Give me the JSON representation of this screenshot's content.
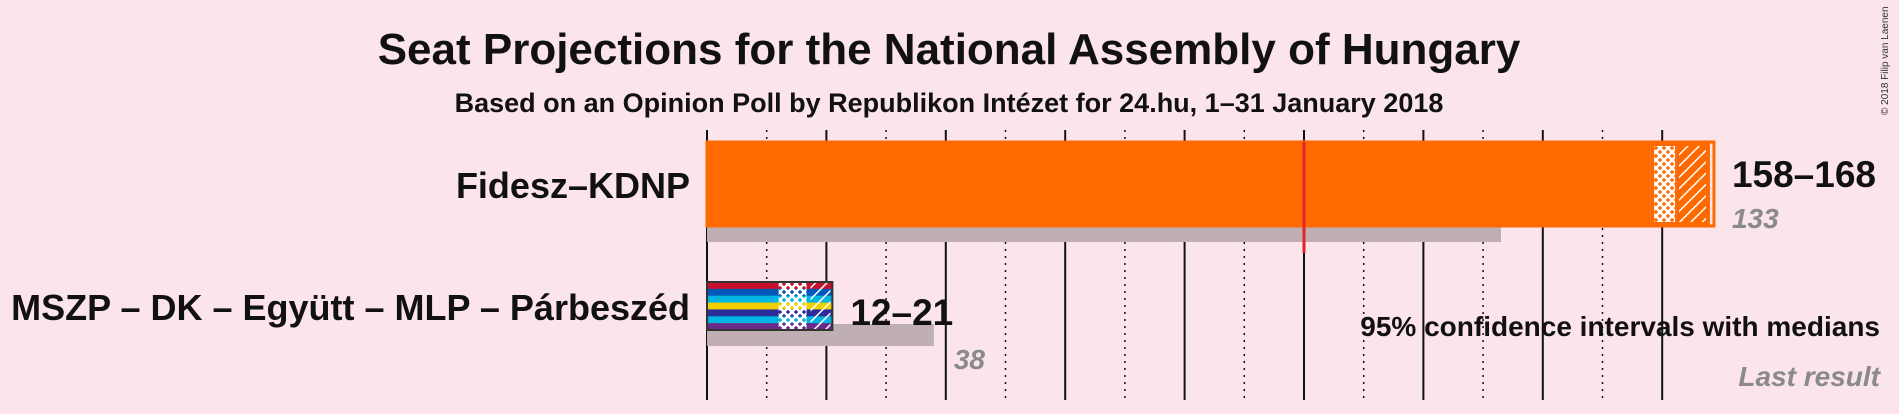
{
  "chart_data": {
    "type": "bar",
    "title": "Seat Projections for the National Assembly of Hungary",
    "subtitle": "Based on an Opinion Poll by Republikon Intézet for 24.hu, 1–31 January 2018",
    "copyright": "© 2018 Filip van Laenen",
    "axis": {
      "min": 0,
      "max": 168,
      "major_tick_step": 20,
      "minor_tick_step": 10
    },
    "majority_line": 100,
    "legend": {
      "ci_label": "95% confidence intervals with medians",
      "last_result_label": "Last result"
    },
    "series": [
      {
        "name": "Fidesz–KDNP",
        "ci_low": 158,
        "ci_high": 168,
        "last_result": 133,
        "range_label": "158–168",
        "last_label": "133",
        "colors": [
          "#ff6a00"
        ]
      },
      {
        "name": "MSZP – DK – Együtt – MLP – Párbeszéd",
        "ci_low": 12,
        "ci_high": 21,
        "last_result": 38,
        "range_label": "12–21",
        "last_label": "38",
        "colors": [
          "#c8102e",
          "#0057b8",
          "#00b5e2",
          "#f2d000",
          "#2b2b9a",
          "#00b5e2",
          "#6a2a8a"
        ]
      }
    ],
    "colors": {
      "background": "#fbe4ea",
      "last_result_bar": "#bfaeb2",
      "majority_line": "#e0242b",
      "text": "#111111",
      "muted_text": "#8a8a8a"
    }
  }
}
